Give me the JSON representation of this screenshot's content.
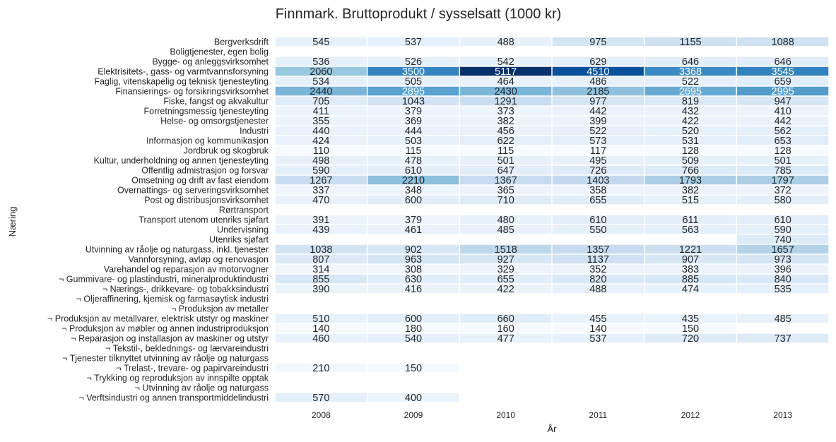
{
  "chart_data": {
    "type": "heatmap",
    "title": "Finnmark. Bruttoprodukt / sysselsatt (1000 kr)",
    "xlabel": "År",
    "ylabel": "Næring",
    "colormap": "Blues",
    "color_range": [
      110,
      5117
    ],
    "grid": false,
    "legend": "none",
    "x": [
      "2008",
      "2009",
      "2010",
      "2011",
      "2012",
      "2013"
    ],
    "rows": [
      {
        "label": "Bergverksdrift",
        "values": [
          545,
          537,
          488,
          975,
          1155,
          1088
        ]
      },
      {
        "label": "Boligtjenester, egen bolig",
        "values": [
          null,
          null,
          null,
          null,
          null,
          null
        ]
      },
      {
        "label": "Bygge- og anleggsvirksomhet",
        "values": [
          536,
          526,
          542,
          629,
          646,
          646
        ]
      },
      {
        "label": "Elektrisitets-, gass- og varmtvannsforsyning",
        "values": [
          2060,
          3500,
          5117,
          4510,
          3368,
          3545
        ]
      },
      {
        "label": "Faglig, vitenskapelig og teknisk tjenesteyting",
        "values": [
          534,
          505,
          464,
          486,
          522,
          659
        ]
      },
      {
        "label": "Finansierings- og forsikringsvirksomhet",
        "values": [
          2440,
          2895,
          2430,
          2185,
          2695,
          2995
        ]
      },
      {
        "label": "Fiske, fangst og akvakultur",
        "values": [
          705,
          1043,
          1291,
          977,
          819,
          947
        ]
      },
      {
        "label": "Forretningsmessig tjenesteyting",
        "values": [
          411,
          379,
          373,
          442,
          432,
          410
        ]
      },
      {
        "label": "Helse- og omsorgstjenester",
        "values": [
          355,
          369,
          382,
          399,
          422,
          442
        ]
      },
      {
        "label": "Industri",
        "values": [
          440,
          444,
          456,
          522,
          520,
          562
        ]
      },
      {
        "label": "Informasjon og kommunikasjon",
        "values": [
          424,
          503,
          622,
          573,
          531,
          653
        ]
      },
      {
        "label": "Jordbruk og skogbruk",
        "values": [
          110,
          115,
          115,
          117,
          128,
          128
        ]
      },
      {
        "label": "Kultur, underholdning og annen tjenesteyting",
        "values": [
          498,
          478,
          501,
          495,
          509,
          501
        ]
      },
      {
        "label": "Offentlig admistrasjon og forsvar",
        "values": [
          590,
          610,
          647,
          726,
          766,
          785
        ]
      },
      {
        "label": "Omsetning og drift av fast eiendom",
        "values": [
          1267,
          2210,
          1367,
          1403,
          1793,
          1797
        ]
      },
      {
        "label": "Overnattings- og serveringsvirksomhet",
        "values": [
          337,
          348,
          365,
          358,
          382,
          372
        ]
      },
      {
        "label": "Post og distribusjonsvirksomhet",
        "values": [
          470,
          600,
          710,
          655,
          515,
          580
        ]
      },
      {
        "label": "Rørtransport",
        "values": [
          null,
          null,
          null,
          null,
          null,
          null
        ]
      },
      {
        "label": "Transport utenom utenriks sjøfart",
        "values": [
          391,
          379,
          480,
          610,
          611,
          610
        ]
      },
      {
        "label": "Undervisning",
        "values": [
          439,
          461,
          485,
          550,
          563,
          590
        ]
      },
      {
        "label": "Utenriks sjøfart",
        "values": [
          null,
          null,
          null,
          null,
          null,
          740
        ]
      },
      {
        "label": "Utvinning av råolje og naturgass, inkl. tjenester",
        "values": [
          1038,
          902,
          1518,
          1357,
          1221,
          1657
        ]
      },
      {
        "label": "Vannforsyning, avløp og renovasjon",
        "values": [
          807,
          963,
          927,
          1137,
          907,
          973
        ]
      },
      {
        "label": "Varehandel og reparasjon av motorvogner",
        "values": [
          314,
          308,
          329,
          352,
          383,
          396
        ]
      },
      {
        "label": "¬ Gummivare- og plastindustri, mineralproduktindustri",
        "values": [
          855,
          630,
          655,
          820,
          885,
          840
        ]
      },
      {
        "label": "¬ Nærings-, drikkevare- og tobakksindustri",
        "values": [
          390,
          416,
          422,
          488,
          474,
          535
        ]
      },
      {
        "label": "¬ Oljeraffinering, kjemisk og farmasøytisk industri",
        "values": [
          null,
          null,
          null,
          null,
          null,
          null
        ]
      },
      {
        "label": "¬ Produksjon av metaller",
        "values": [
          null,
          null,
          null,
          null,
          null,
          null
        ]
      },
      {
        "label": "¬ Produksjon av metallvarer, elektrisk utstyr og maskiner",
        "values": [
          510,
          600,
          660,
          455,
          435,
          485
        ]
      },
      {
        "label": "¬ Produksjon av møbler og annen industriproduksjon",
        "values": [
          140,
          180,
          160,
          140,
          150,
          null
        ]
      },
      {
        "label": "¬ Reparasjon og installasjon av maskiner og utstyr",
        "values": [
          460,
          540,
          477,
          537,
          720,
          737
        ]
      },
      {
        "label": "¬ Tekstil-, beklednings- og lærvareindustri",
        "values": [
          null,
          null,
          null,
          null,
          null,
          null
        ]
      },
      {
        "label": "¬ Tjenester tilknyttet utvinning av råolje og naturgass",
        "values": [
          null,
          null,
          null,
          null,
          null,
          null
        ]
      },
      {
        "label": "¬ Trelast-, trevare- og papirvareindustri",
        "values": [
          210,
          150,
          null,
          null,
          null,
          null
        ]
      },
      {
        "label": "¬ Trykking og reproduksjon av innspilte opptak",
        "values": [
          null,
          null,
          null,
          null,
          null,
          null
        ]
      },
      {
        "label": "¬ Utvinning av råolje og naturgass",
        "values": [
          null,
          null,
          null,
          null,
          null,
          null
        ]
      },
      {
        "label": "¬ Verftsindustri og annen transportmiddelindustri",
        "values": [
          570,
          400,
          null,
          null,
          null,
          null
        ]
      }
    ]
  }
}
